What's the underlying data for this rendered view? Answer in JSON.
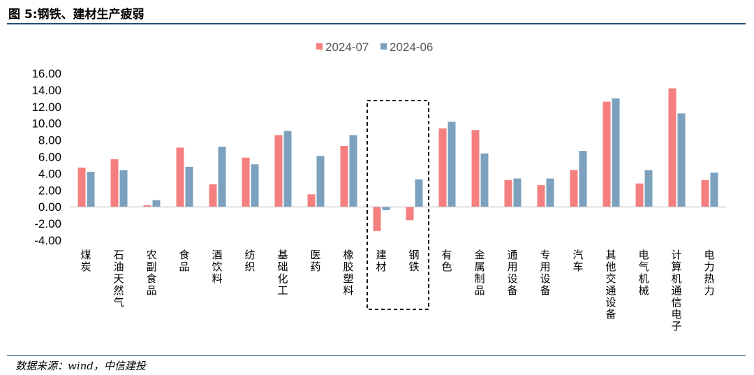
{
  "header": {
    "title": "图 5:钢铁、建材生产疲弱"
  },
  "footer": {
    "source": "数据来源：wind，中信建投"
  },
  "colors": {
    "series1": "#f57f7f",
    "series2": "#7ba1bf",
    "highlight_box": "#000000",
    "rule": "#1f4e79"
  },
  "chart_data": {
    "type": "bar",
    "title": "",
    "xlabel": "",
    "ylabel": "",
    "ylim": [
      -4,
      16
    ],
    "yticks": [
      "16.00",
      "14.00",
      "12.00",
      "10.00",
      "8.00",
      "6.00",
      "4.00",
      "2.00",
      "0.00",
      "-2.00",
      "-4.00"
    ],
    "grid": false,
    "legend_position": "top-center",
    "categories": [
      "煤炭",
      "石油天然气",
      "农副食品",
      "食品",
      "酒饮料",
      "纺织",
      "基础化工",
      "医药",
      "橡胶塑料",
      "建材",
      "钢铁",
      "有色",
      "金属制品",
      "通用设备",
      "专用设备",
      "汽车",
      "其他交通设备",
      "电气机械",
      "计算机通信电子",
      "电力热力"
    ],
    "highlighted_categories": [
      "建材",
      "钢铁"
    ],
    "series": [
      {
        "name": "2024-07",
        "values": [
          4.7,
          5.7,
          0.2,
          7.1,
          2.7,
          5.9,
          8.6,
          1.5,
          7.3,
          -2.9,
          -1.6,
          9.4,
          9.2,
          3.2,
          2.6,
          4.4,
          12.6,
          2.8,
          14.2,
          3.2
        ]
      },
      {
        "name": "2024-06",
        "values": [
          4.2,
          4.4,
          0.8,
          4.8,
          7.2,
          5.1,
          9.1,
          6.1,
          8.6,
          -0.4,
          3.3,
          10.2,
          6.4,
          3.4,
          3.4,
          6.7,
          13.0,
          4.4,
          11.2,
          4.1
        ]
      }
    ]
  }
}
